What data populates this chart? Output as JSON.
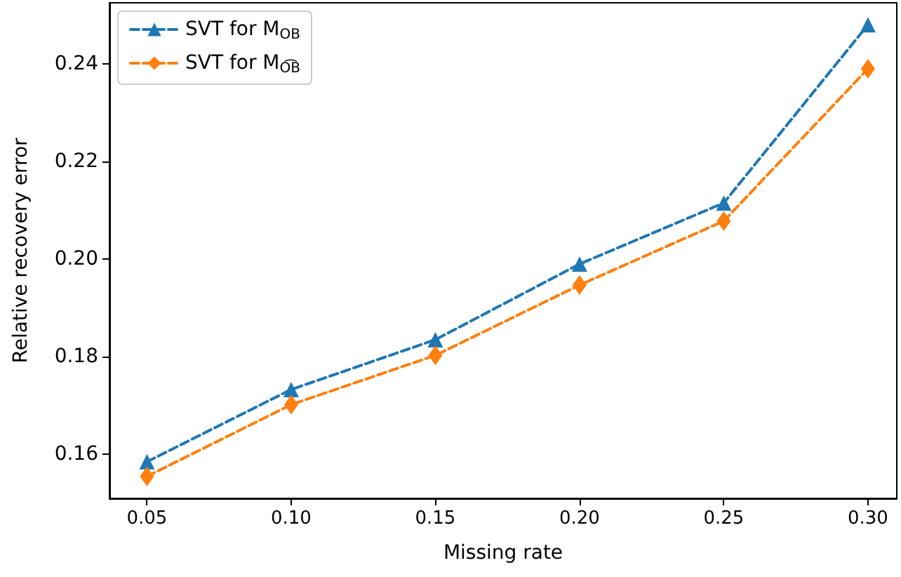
{
  "chart_data": {
    "type": "line",
    "xlabel": "Missing rate",
    "ylabel": "Relative recovery error",
    "x": [
      0.05,
      0.1,
      0.15,
      0.2,
      0.25,
      0.3
    ],
    "series": [
      {
        "name": "SVT for M$_{OB}$",
        "color": "#1f77b4",
        "marker": "triangle",
        "values": [
          0.1585,
          0.1733,
          0.1835,
          0.199,
          0.2115,
          0.248
        ]
      },
      {
        "name": "SVT for M$_{O͡B}$",
        "color": "#ff7f0e",
        "marker": "diamond",
        "values": [
          0.1555,
          0.1702,
          0.1803,
          0.1947,
          0.2078,
          0.239
        ]
      }
    ],
    "xlim": [
      0.037,
      0.31
    ],
    "xticks": [
      0.05,
      {
        "value": 0.1,
        "label": "0.10"
      },
      0.15,
      {
        "value": 0.2,
        "label": "0.20"
      },
      0.25,
      {
        "value": 0.3,
        "label": "0.30"
      }
    ],
    "ylim": [
      0.151,
      0.2525
    ],
    "yticks": [
      0.16,
      0.18,
      {
        "value": 0.2,
        "label": "0.20"
      },
      0.22,
      0.24
    ],
    "grid": false,
    "legend": "top left",
    "line_style": "dashed"
  }
}
